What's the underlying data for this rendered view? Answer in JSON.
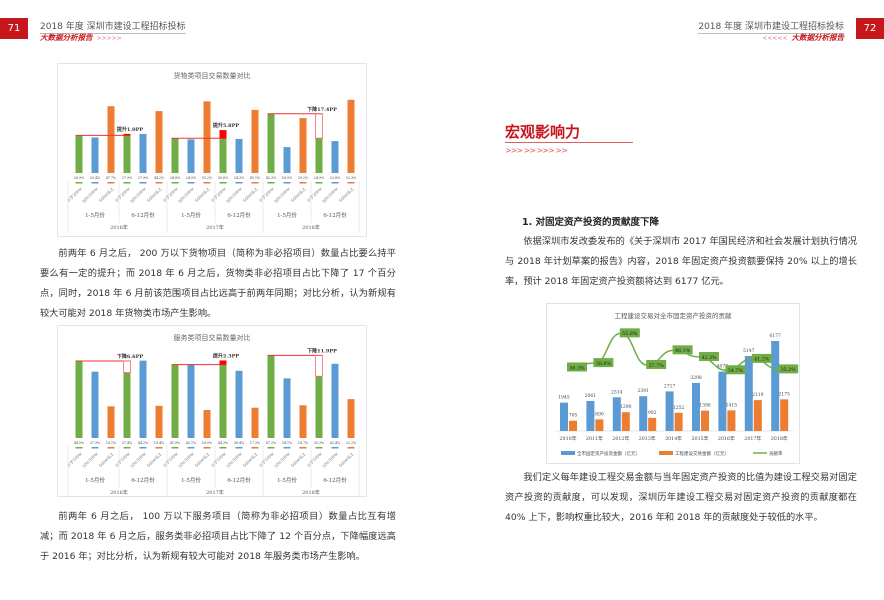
{
  "header_left": {
    "page_number": "71",
    "title": "2018 年度 深圳市建设工程招标投标",
    "subtitle": "大数据分析报告",
    "chevrons": ">>>>>"
  },
  "header_right": {
    "page_number": "72",
    "title": "2018 年度 深圳市建设工程招标投标",
    "subtitle": "大数据分析报告",
    "chevrons": "<<<<<"
  },
  "left": {
    "paragraph1": "前两年 6 月之后， 200 万以下货物项目（简称为非必招项目）数量占比要么持平要么有一定的提升；而 2018 年 6 月之后，货物类非必招项目占比下降了 17 个百分点，同时，2018 年 6 月前该范围项目占比远高于前两年同期；对比分析，认为新规有较大可能对 2018 年货物类市场产生影响。",
    "paragraph2": "前两年 6 月之后， 100 万以下服务项目（简称为非必招项目）数量占比互有增减；而 2018 年 6 月之后，服务类非必招项目占比下降了 12 个百分点，下降幅度远高于 2016 年；对比分析，认为新规有较大可能对 2018 年服务类市场产生影响。"
  },
  "right": {
    "section_title": "宏观影响力",
    "section_chevrons": ">>> >>   >>> >>",
    "subheading": "1. 对固定资产投资的贡献度下降",
    "paragraph1": "依据深圳市发改委发布的《关于深圳市 2017 年国民经济和社会发展计划执行情况与 2018 年计划草案的报告》内容，2018 年固定资产投资额要保持 20% 以上的增长率，预计 2018 年固定资产投资额将达到 6177 亿元。",
    "paragraph2": "我们定义每年建设工程交易金额与当年固定资产投资的比值为建设工程交易对固定资产投资的贡献度，可以发现，深圳历年建设工程交易对固定资产投资的贡献度都在 40% 上下，影响权重比较大，2016 年和 2018 年的贡献度处于较低的水平。"
  },
  "colors": {
    "accent": "#c8161d",
    "green": "#70ad47",
    "blue": "#5b9bd5",
    "orange": "#ed7d31",
    "highlight": "#ff0000"
  },
  "chart_data": [
    {
      "type": "bar",
      "title": "货物类项目交易数量对比",
      "years": [
        "2016年",
        "2017年",
        "2018年"
      ],
      "periods": [
        "1-5月份",
        "6-12月份"
      ],
      "categories": [
        "小于200w",
        "200-500w",
        "500w以上"
      ],
      "values": [
        [
          26.9,
          25.4,
          47.7
        ],
        [
          27.9,
          27.9,
          44.2
        ],
        [
          24.8,
          24.0,
          51.2
        ],
        [
          30.6,
          24.3,
          45.1
        ],
        [
          42.3,
          18.5,
          39.2
        ],
        [
          24.9,
          22.8,
          52.3
        ]
      ],
      "labels": [
        [
          "26.9%",
          "25.4%",
          "47.7%"
        ],
        [
          "27.9%",
          "27.9%",
          "44.2%"
        ],
        [
          "24.8%",
          "24.0%",
          "51.2%"
        ],
        [
          "30.6%",
          "24.3%",
          "45.1%"
        ],
        [
          "42.3%",
          "18.5%",
          "39.2%"
        ],
        [
          "24.9%",
          "22.8%",
          "52.3%"
        ]
      ],
      "annotations": [
        {
          "from_group": 0,
          "to_group": 1,
          "label": "提升1.0PP"
        },
        {
          "from_group": 2,
          "to_group": 3,
          "label": "提升5.8PP"
        },
        {
          "from_group": 4,
          "to_group": 5,
          "label": "下降17.4PP"
        }
      ],
      "ylim": [
        0,
        55
      ]
    },
    {
      "type": "bar",
      "title": "服务类项目交易数量对比",
      "years": [
        "2016年",
        "2017年",
        "2018年"
      ],
      "periods": [
        "1-5月份",
        "6-12月份"
      ],
      "categories": [
        "小于100w",
        "100-500w",
        "500w以上"
      ],
      "values": [
        [
          44.0,
          37.9,
          18.1
        ],
        [
          37.4,
          44.2,
          18.4
        ],
        [
          41.9,
          42.1,
          16.0
        ],
        [
          44.3,
          38.4,
          17.3
        ],
        [
          47.2,
          34.1,
          18.7
        ],
        [
          35.3,
          42.4,
          22.2
        ]
      ],
      "labels": [
        [
          "44.0%",
          "37.9%",
          "18.1%"
        ],
        [
          "37.4%",
          "44.2%",
          "18.4%"
        ],
        [
          "41.9%",
          "42.1%",
          "16.0%"
        ],
        [
          "44.3%",
          "38.4%",
          "17.3%"
        ],
        [
          "47.2%",
          "34.1%",
          "18.7%"
        ],
        [
          "35.3%",
          "42.4%",
          "22.2%"
        ]
      ],
      "annotations": [
        {
          "from_group": 0,
          "to_group": 1,
          "label": "下降6.6PP"
        },
        {
          "from_group": 2,
          "to_group": 3,
          "label": "提升2.3PP"
        },
        {
          "from_group": 4,
          "to_group": 5,
          "label": "下降11.9PP"
        }
      ],
      "ylim": [
        0,
        50
      ]
    },
    {
      "type": "bar+line",
      "title": "工程建设交易对全市固定资产投资的贡献",
      "categories": [
        "2010年",
        "2011年",
        "2012年",
        "2013年",
        "2014年",
        "2015年",
        "2016年",
        "2017年",
        "2018年"
      ],
      "series": [
        {
          "name": "全市固定资产投资金额（亿元）",
          "values": [
            1945,
            2061,
            2314,
            2391,
            2717,
            3298,
            4078,
            5147,
            6177
          ],
          "color": "#5b9bd5"
        },
        {
          "name": "工程建设交易金额（亿元）",
          "values": [
            705,
            800,
            1290,
            902,
            1252,
            1396,
            1415,
            2119,
            2175
          ],
          "color": "#ed7d31"
        },
        {
          "name": "贡献率",
          "values": [
            36.3,
            38.8,
            55.8,
            37.7,
            46.1,
            42.3,
            34.7,
            41.2,
            35.2
          ],
          "labels": [
            "36.3%",
            "38.8%",
            "55.8%",
            "37.7%",
            "46.1%",
            "42.3%",
            "34.7%",
            "41.2%",
            "35.2%"
          ],
          "color": "#70ad47"
        }
      ],
      "legend_position": "bottom"
    }
  ]
}
